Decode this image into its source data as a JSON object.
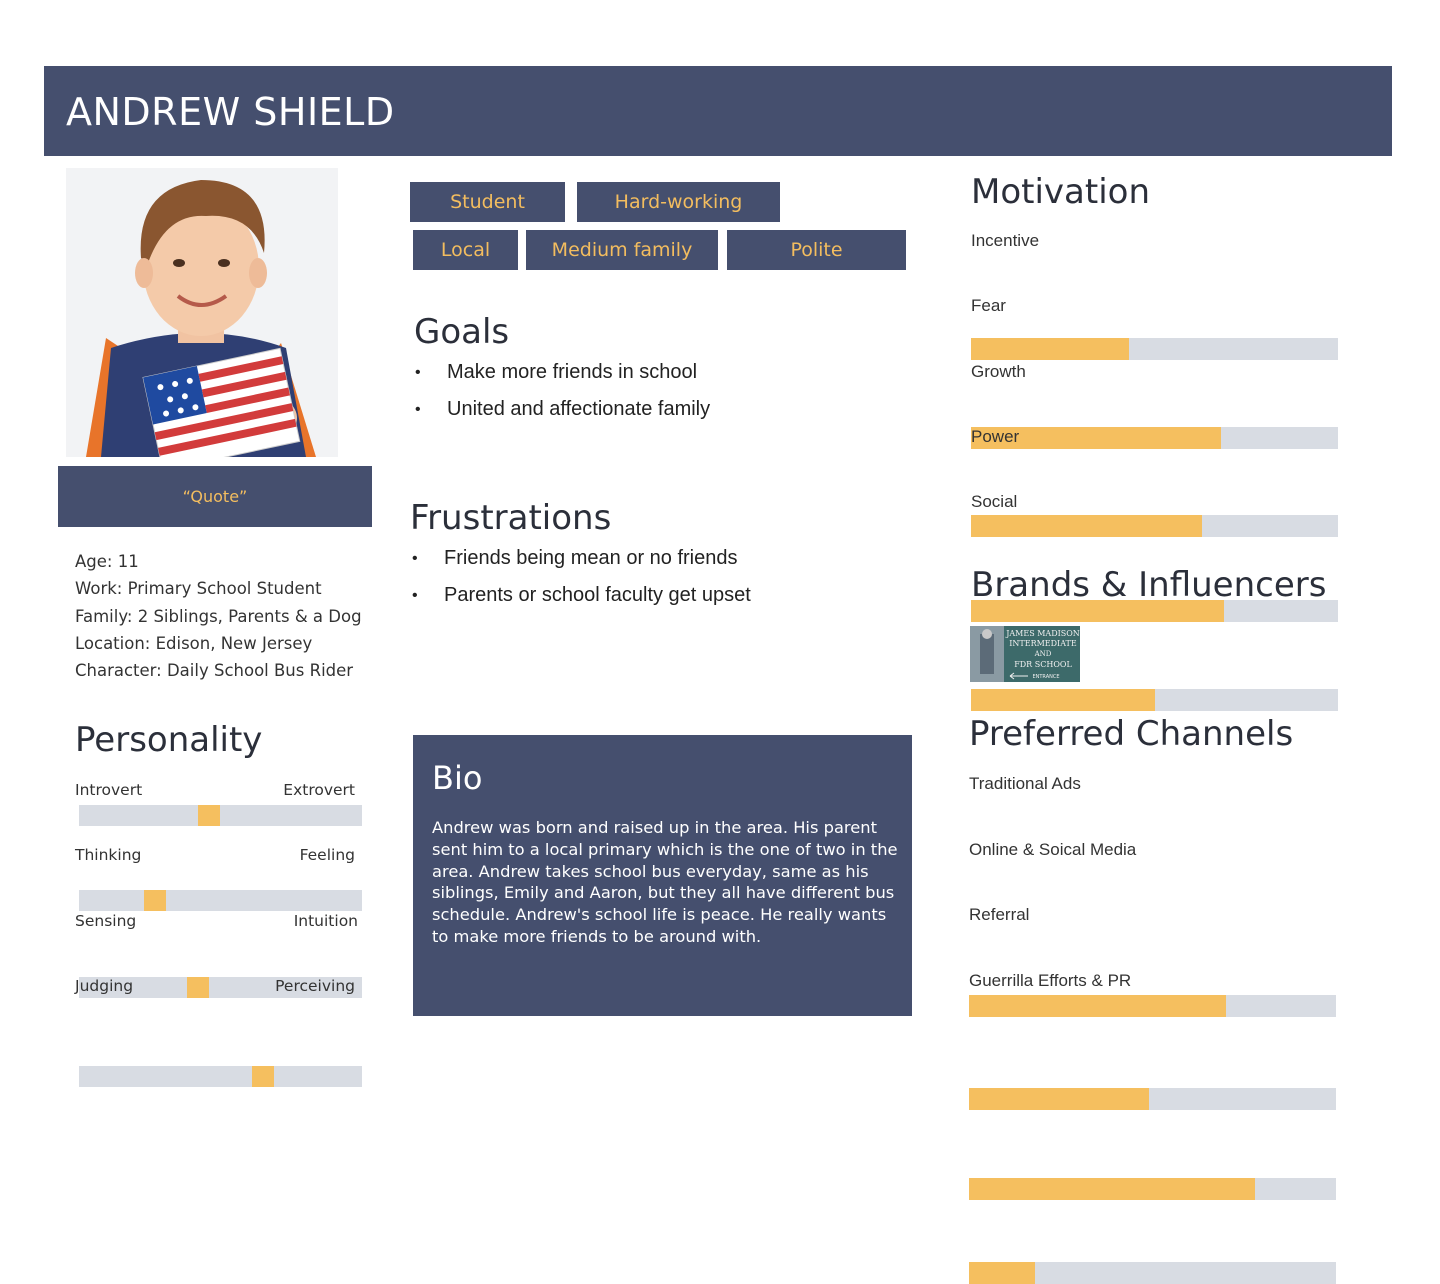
{
  "name": "ANDREW SHIELD",
  "quote": "“Quote”",
  "facts": {
    "age": "Age:  11",
    "work": "Work: Primary School Student",
    "family": "Family:  2 Siblings, Parents & a Dog",
    "location": "Location: Edison, New Jersey",
    "character": "Character: Daily School Bus Rider"
  },
  "tags": [
    "Student",
    "Hard-working",
    "Local",
    "Medium family",
    "Polite"
  ],
  "goals": {
    "title": "Goals",
    "items": [
      "Make more friends in school",
      "United and affectionate family"
    ]
  },
  "frustrations": {
    "title": "Frustrations",
    "items": [
      "Friends being mean or no friends",
      "Parents or school faculty get upset"
    ]
  },
  "personality": {
    "title": "Personality",
    "traits": [
      {
        "left": "Introvert",
        "right": "Extrovert",
        "value": 0.46
      },
      {
        "left": "Thinking",
        "right": "Feeling",
        "value": 0.27
      },
      {
        "left": "Sensing",
        "right": "Intuition",
        "value": 0.42
      },
      {
        "left": "Judging",
        "right": "Perceiving",
        "value": 0.65
      }
    ]
  },
  "bio": {
    "title": "Bio",
    "text": "Andrew was born and raised up in the area. His parent sent him to a local primary which is the one of two in the area. Andrew takes school bus everyday, same as his siblings, Emily and Aaron, but they all have different bus schedule. Andrew's school life is peace. He really wants to make more friends to be around with."
  },
  "motivation": {
    "title": "Motivation",
    "items": [
      {
        "label": "Incentive",
        "value": 0.43
      },
      {
        "label": "Fear",
        "value": 0.68
      },
      {
        "label": "Growth",
        "value": 0.63
      },
      {
        "label": "Power",
        "value": 0.69
      },
      {
        "label": "Social",
        "value": 0.5
      }
    ]
  },
  "brands": {
    "title": "Brands & Influencers",
    "sign_lines": [
      "JAMES MADISON",
      "INTERMEDIATE",
      "AND",
      "FDR SCHOOL",
      "ENTRANCE"
    ]
  },
  "channels": {
    "title": "Preferred Channels",
    "items": [
      {
        "label": "Traditional Ads",
        "value": 0.7
      },
      {
        "label": "Online & Soical Media",
        "value": 0.49
      },
      {
        "label": "Referral",
        "value": 0.78
      },
      {
        "label": "Guerrilla Efforts & PR",
        "value": 0.18
      }
    ]
  },
  "colors": {
    "navy": "#454f6e",
    "accent": "#f5bf5f",
    "track": "#d8dce3"
  }
}
